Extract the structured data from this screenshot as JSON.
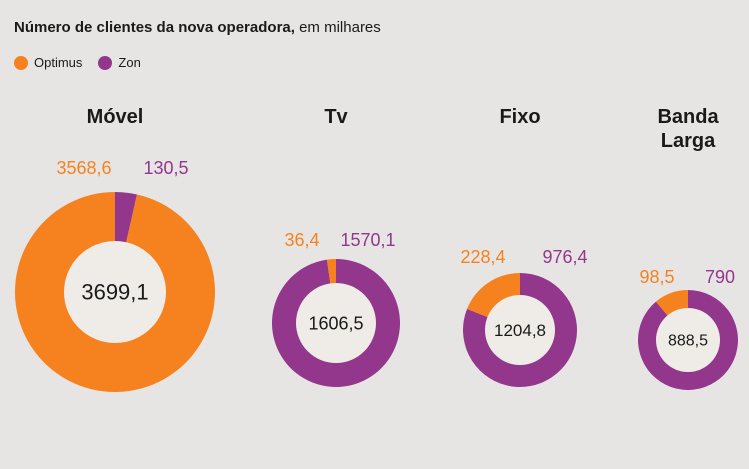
{
  "header": {
    "title_bold": "Número de clientes da nova operadora,",
    "title_rest": " em milhares"
  },
  "legend": [
    {
      "label": "Optimus",
      "color": "#f5821f"
    },
    {
      "label": "Zon",
      "color": "#93378d"
    }
  ],
  "colors": {
    "optimus": "#f5821f",
    "zon": "#93378d",
    "center": "#efece8",
    "background": "#e7e5e4"
  },
  "chart_data": {
    "type": "pie",
    "title": "Número de clientes da nova operadora, em milhares",
    "series_names": [
      "Optimus",
      "Zon"
    ],
    "charts": [
      {
        "name": "Móvel",
        "optimus": 3568.6,
        "zon": 130.5,
        "total": 3699.1,
        "optimus_label": "3568,6",
        "zon_label": "130,5",
        "total_label": "3699,1"
      },
      {
        "name": "Tv",
        "optimus": 36.4,
        "zon": 1570.1,
        "total": 1606.5,
        "optimus_label": "36,4",
        "zon_label": "1570,1",
        "total_label": "1606,5"
      },
      {
        "name": "Fixo",
        "optimus": 228.4,
        "zon": 976.4,
        "total": 1204.8,
        "optimus_label": "228,4",
        "zon_label": "976,4",
        "total_label": "1204,8"
      },
      {
        "name": "Banda Larga",
        "name_lines": [
          "Banda",
          "Larga"
        ],
        "optimus": 98.5,
        "zon": 790,
        "total": 888.5,
        "optimus_label": "98,5",
        "zon_label": "790",
        "total_label": "888,5"
      }
    ]
  }
}
